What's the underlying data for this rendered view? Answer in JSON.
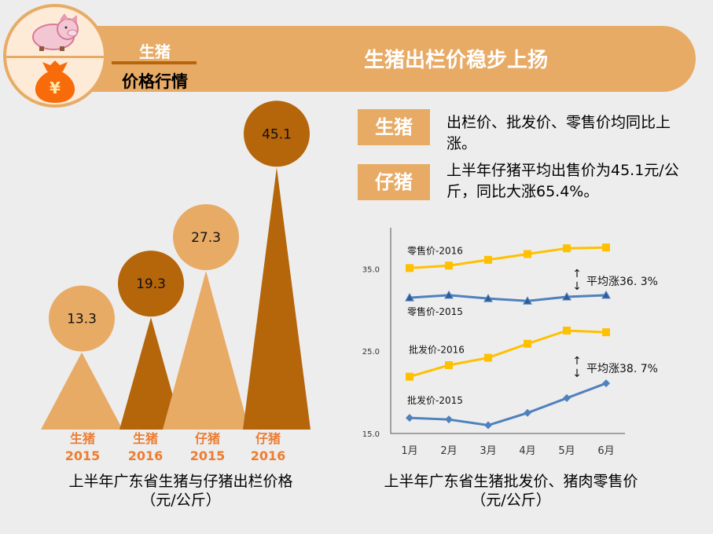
{
  "header": {
    "badge_top": "生猪",
    "badge_bottom": "价格行情",
    "title": "生猪出栏价稳步上扬",
    "icons": [
      "pig-icon",
      "money-bag-icon"
    ],
    "money_symbol": "¥"
  },
  "highlights": [
    {
      "tag": "生猪",
      "text": "出栏价、批发价、零售价均同比上涨。"
    },
    {
      "tag": "仔猪",
      "text": "上半年仔猪平均出售价为45.1元/公斤，同比大涨65.4%。"
    }
  ],
  "colors": {
    "light": "#e8ab66",
    "dark": "#b5650a",
    "label": "#ed7d31",
    "yellow": "#ffc000",
    "blue": "#4f81bd",
    "dark_blue": "#2e5c9a"
  },
  "chart_data": [
    {
      "type": "bar",
      "style": "triangle-with-circle-label",
      "categories": [
        "生猪 2015",
        "生猪 2016",
        "仔猪 2015",
        "仔猪 2016"
      ],
      "category_lines": [
        [
          "生猪",
          "2015"
        ],
        [
          "生猪",
          "2016"
        ],
        [
          "仔猪",
          "2015"
        ],
        [
          "仔猪",
          "2016"
        ]
      ],
      "values": [
        13.3,
        19.3,
        27.3,
        45.1
      ],
      "value_labels": [
        "13.3",
        "19.3",
        "27.3",
        "45.1"
      ],
      "title": "上半年广东省生猪与仔猪出栏价格",
      "subtitle": "（元/公斤）"
    },
    {
      "type": "line",
      "title": "上半年广东省生猪批发价、猪肉零售价",
      "subtitle": "（元/公斤）",
      "categories": [
        "1月",
        "2月",
        "3月",
        "4月",
        "5月",
        "6月"
      ],
      "ylim": [
        15,
        40
      ],
      "yticks": [
        "15.0",
        "25.0",
        "35.0"
      ],
      "grid": false,
      "series": [
        {
          "name": "零售价-2016",
          "color": "#ffc000",
          "marker": "square",
          "values": [
            35.1,
            35.4,
            36.1,
            36.8,
            37.5,
            37.6
          ]
        },
        {
          "name": "零售价-2015",
          "color": "#4f81bd",
          "marker": "triangle",
          "values": [
            31.5,
            31.8,
            31.4,
            31.1,
            31.6,
            31.8
          ]
        },
        {
          "name": "批发价-2016",
          "color": "#ffc000",
          "marker": "square",
          "values": [
            21.9,
            23.3,
            24.2,
            25.9,
            27.5,
            27.3
          ]
        },
        {
          "name": "批发价-2015",
          "color": "#4f81bd",
          "marker": "diamond",
          "values": [
            16.9,
            16.7,
            16.0,
            17.5,
            19.3,
            21.1
          ]
        }
      ],
      "annotations": [
        "平均涨36. 3%",
        "平均涨38. 7%"
      ]
    }
  ]
}
